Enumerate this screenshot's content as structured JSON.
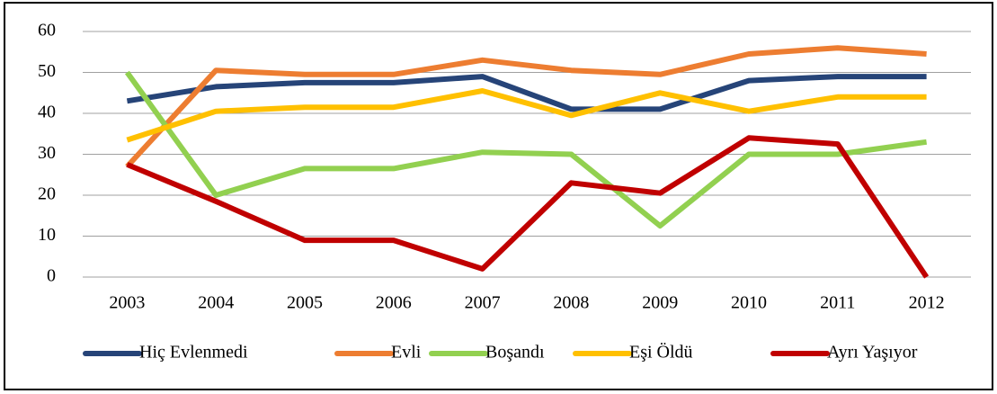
{
  "chart_data": {
    "type": "line",
    "categories": [
      "2003",
      "2004",
      "2005",
      "2006",
      "2007",
      "2008",
      "2009",
      "2010",
      "2011",
      "2012"
    ],
    "series": [
      {
        "name": "Hiç Evlenmedi",
        "color": "#264478",
        "values": [
          43,
          46.5,
          47.5,
          47.5,
          49,
          41,
          41,
          48,
          49,
          49
        ]
      },
      {
        "name": "Evli",
        "color": "#ed7d31",
        "values": [
          27,
          50.5,
          49.5,
          49.5,
          53,
          50.5,
          49.5,
          54.5,
          56,
          54.5
        ]
      },
      {
        "name": "Boşandı",
        "color": "#92d050",
        "values": [
          50,
          20,
          26.5,
          26.5,
          30.5,
          30,
          12.5,
          30,
          30,
          33
        ]
      },
      {
        "name": "Eşi Öldü",
        "color": "#ffc000",
        "values": [
          33.5,
          40.5,
          41.5,
          41.5,
          45.5,
          39.5,
          45,
          40.5,
          44,
          44
        ]
      },
      {
        "name": "Ayrı Yaşıyor",
        "color": "#c00000",
        "values": [
          27.5,
          18.5,
          9,
          9,
          2,
          23,
          20.5,
          34,
          32.5,
          0
        ]
      }
    ],
    "ylim": [
      0,
      60
    ],
    "yticks": [
      0,
      10,
      20,
      30,
      40,
      50,
      60
    ],
    "grid": true,
    "legend": "bottom"
  }
}
